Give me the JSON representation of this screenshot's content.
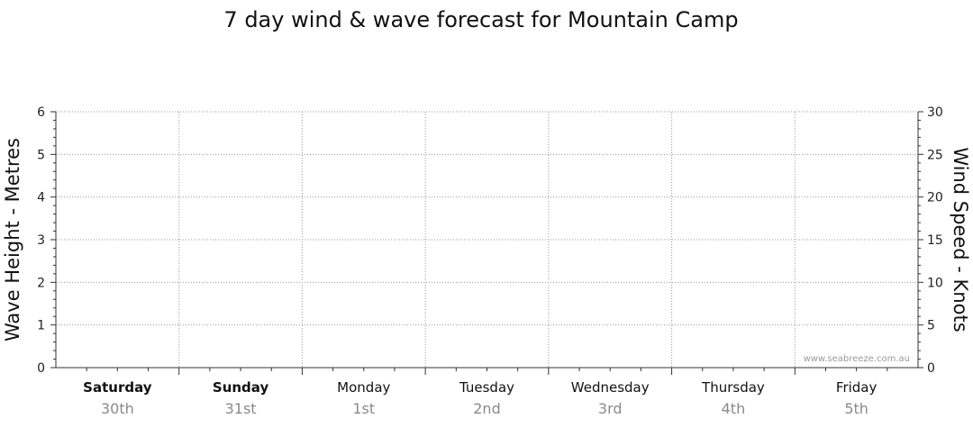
{
  "chart_data": {
    "type": "line",
    "title": "7 day wind & wave forecast for Mountain Camp",
    "y_left_label": "Wave Height - Metres",
    "y_right_label": "Wind Speed - Knots",
    "y_left_range": [
      0,
      6
    ],
    "y_left_ticks": [
      "0",
      "1",
      "2",
      "3",
      "4",
      "5",
      "6"
    ],
    "y_right_range": [
      0,
      30
    ],
    "y_right_ticks": [
      "0",
      "5",
      "10",
      "15",
      "20",
      "25",
      "30"
    ],
    "grid": true,
    "days": [
      {
        "name": "Saturday",
        "date": "30th",
        "bold": true
      },
      {
        "name": "Sunday",
        "date": "31st",
        "bold": true
      },
      {
        "name": "Monday",
        "date": "1st",
        "bold": false
      },
      {
        "name": "Tuesday",
        "date": "2nd",
        "bold": false
      },
      {
        "name": "Wednesday",
        "date": "3rd",
        "bold": false
      },
      {
        "name": "Thursday",
        "date": "4th",
        "bold": false
      },
      {
        "name": "Friday",
        "date": "5th",
        "bold": false
      }
    ],
    "series": [],
    "watermark": "www.seabreeze.com.au"
  }
}
